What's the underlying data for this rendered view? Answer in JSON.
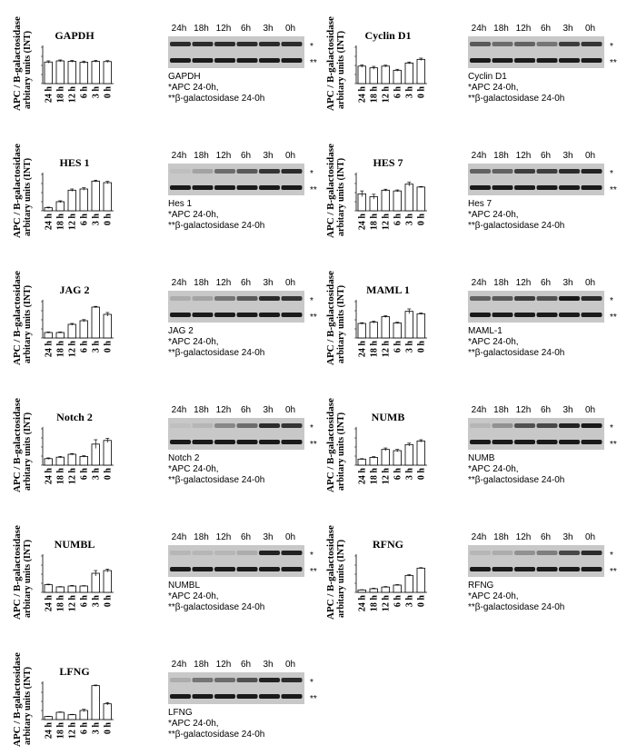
{
  "common": {
    "ylabel_line1": "APC / B-galactosidase",
    "ylabel_line2": "arbitary units (INT)",
    "categories": [
      "24 h",
      "18 h",
      "12 h",
      "6 h",
      "3 h",
      "0 h"
    ],
    "blot_lanes": [
      "24h",
      "18h",
      "12h",
      "6h",
      "3h",
      "0h"
    ],
    "marker_top": "*",
    "marker_bottom": "**",
    "caption_line2": "*APC 24-0h,",
    "caption_line3": "**β-galactosidase 24-0h"
  },
  "chart_data": [
    {
      "type": "bar",
      "title": "GAPDH",
      "categories": [
        "24 h",
        "18 h",
        "12 h",
        "6 h",
        "3 h",
        "0 h"
      ],
      "values": [
        0.95,
        1.0,
        0.98,
        0.94,
        0.98,
        0.97
      ],
      "errors": [
        0.05,
        0.04,
        0.04,
        0.05,
        0.04,
        0.04
      ],
      "ylim": [
        0,
        1.6
      ],
      "blot_caption": "GAPDH",
      "apc_intensity": [
        0.85,
        0.85,
        0.85,
        0.85,
        0.85,
        0.85
      ]
    },
    {
      "type": "bar",
      "title": "Cyclin D1",
      "categories": [
        "24 h",
        "18 h",
        "12 h",
        "6 h",
        "3 h",
        "0 h"
      ],
      "values": [
        0.72,
        0.65,
        0.72,
        0.55,
        0.85,
        1.0
      ],
      "errors": [
        0.05,
        0.06,
        0.04,
        0.04,
        0.04,
        0.05
      ],
      "ylim": [
        0,
        1.5
      ],
      "blot_caption": "Cyclin D1",
      "apc_intensity": [
        0.6,
        0.5,
        0.55,
        0.45,
        0.75,
        0.8
      ]
    },
    {
      "type": "bar",
      "title": "HES 1",
      "categories": [
        "24 h",
        "18 h",
        "12 h",
        "6 h",
        "3 h",
        "0 h"
      ],
      "values": [
        0.1,
        0.3,
        0.68,
        0.72,
        0.98,
        0.93
      ],
      "errors": [
        0.02,
        0.03,
        0.04,
        0.04,
        0.03,
        0.04
      ],
      "ylim": [
        0,
        1.2
      ],
      "blot_caption": "Hes 1",
      "apc_intensity": [
        0.05,
        0.2,
        0.5,
        0.6,
        0.8,
        0.85
      ]
    },
    {
      "type": "bar",
      "title": "HES 7",
      "categories": [
        "24 h",
        "18 h",
        "12 h",
        "6 h",
        "3 h",
        "0 h"
      ],
      "values": [
        0.7,
        0.58,
        0.85,
        0.82,
        1.1,
        0.98
      ],
      "errors": [
        0.12,
        0.1,
        0.04,
        0.04,
        0.08,
        0.02
      ],
      "ylim": [
        0,
        1.5
      ],
      "blot_caption": "Hes 7",
      "apc_intensity": [
        0.55,
        0.55,
        0.75,
        0.75,
        0.85,
        0.9
      ]
    },
    {
      "type": "bar",
      "title": "JAG 2",
      "categories": [
        "24 h",
        "18 h",
        "12 h",
        "6 h",
        "3 h",
        "0 h"
      ],
      "values": [
        0.3,
        0.3,
        0.75,
        0.95,
        1.7,
        1.3
      ],
      "errors": [
        0.03,
        0.03,
        0.05,
        0.06,
        0.04,
        0.1
      ],
      "ylim": [
        0,
        2.0
      ],
      "blot_caption": "JAG 2",
      "apc_intensity": [
        0.15,
        0.2,
        0.45,
        0.6,
        0.85,
        0.8
      ]
    },
    {
      "type": "bar",
      "title": "MAML 1",
      "categories": [
        "24 h",
        "18 h",
        "12 h",
        "6 h",
        "3 h",
        "0 h"
      ],
      "values": [
        0.6,
        0.65,
        0.88,
        0.62,
        1.1,
        1.0
      ],
      "errors": [
        0.03,
        0.04,
        0.04,
        0.03,
        0.1,
        0.03
      ],
      "ylim": [
        0,
        1.5
      ],
      "blot_caption": "MAML-1",
      "apc_intensity": [
        0.55,
        0.6,
        0.75,
        0.65,
        0.95,
        0.85
      ]
    },
    {
      "type": "bar",
      "title": "Notch 2",
      "categories": [
        "24 h",
        "18 h",
        "12 h",
        "6 h",
        "3 h",
        "0 h"
      ],
      "values": [
        0.45,
        0.55,
        0.75,
        0.6,
        1.45,
        1.7
      ],
      "errors": [
        0.05,
        0.05,
        0.05,
        0.05,
        0.3,
        0.15
      ],
      "ylim": [
        0,
        2.5
      ],
      "blot_caption": "Notch 2",
      "apc_intensity": [
        0.05,
        0.1,
        0.35,
        0.5,
        0.85,
        0.8
      ]
    },
    {
      "type": "bar",
      "title": "NUMB",
      "categories": [
        "24 h",
        "18 h",
        "12 h",
        "6 h",
        "3 h",
        "0 h"
      ],
      "values": [
        0.25,
        0.32,
        0.65,
        0.6,
        0.85,
        1.0
      ],
      "errors": [
        0.02,
        0.03,
        0.06,
        0.05,
        0.06,
        0.05
      ],
      "ylim": [
        0,
        1.5
      ],
      "blot_caption": "NUMB",
      "apc_intensity": [
        0.1,
        0.3,
        0.65,
        0.7,
        0.9,
        0.95
      ]
    },
    {
      "type": "bar",
      "title": "NUMBL",
      "categories": [
        "24 h",
        "18 h",
        "12 h",
        "6 h",
        "3 h",
        "0 h"
      ],
      "values": [
        0.42,
        0.3,
        0.35,
        0.35,
        1.05,
        1.2
      ],
      "errors": [
        0.03,
        0.02,
        0.03,
        0.02,
        0.15,
        0.08
      ],
      "ylim": [
        0,
        2.0
      ],
      "blot_caption": "NUMBL",
      "apc_intensity": [
        0.1,
        0.1,
        0.1,
        0.15,
        0.9,
        0.9
      ]
    },
    {
      "type": "bar",
      "title": "RFNG",
      "categories": [
        "24 h",
        "18 h",
        "12 h",
        "6 h",
        "3 h",
        "0 h"
      ],
      "values": [
        0.1,
        0.15,
        0.22,
        0.3,
        0.7,
        1.0
      ],
      "errors": [
        0.01,
        0.02,
        0.02,
        0.02,
        0.03,
        0.02
      ],
      "ylim": [
        0,
        1.5
      ],
      "blot_caption": "RFNG",
      "apc_intensity": [
        0.1,
        0.15,
        0.3,
        0.4,
        0.7,
        0.85
      ]
    },
    {
      "type": "bar",
      "title": "LFNG",
      "categories": [
        "24 h",
        "18 h",
        "12 h",
        "6 h",
        "3 h",
        "0 h"
      ],
      "values": [
        0.25,
        0.6,
        0.4,
        0.75,
        2.8,
        1.3
      ],
      "errors": [
        0.02,
        0.03,
        0.03,
        0.1,
        0.05,
        0.1
      ],
      "ylim": [
        0,
        3.0
      ],
      "blot_caption": "LFNG",
      "apc_intensity": [
        0.15,
        0.45,
        0.5,
        0.65,
        0.9,
        0.85
      ]
    }
  ]
}
